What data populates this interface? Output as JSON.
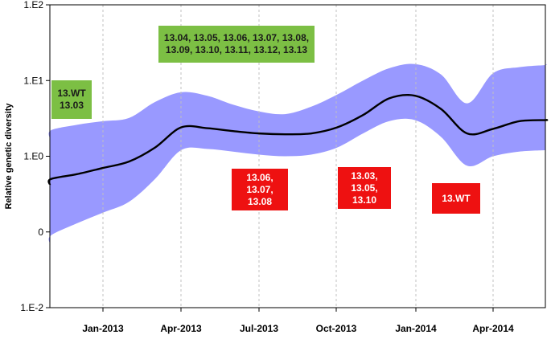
{
  "chart_data": {
    "type": "area",
    "ylabel": "Relative genetic diversity",
    "xlabel": "",
    "y_scale": "log",
    "y_ticks": [
      "1.E-2",
      "0",
      "1.E0",
      "1.E1",
      "1.E2"
    ],
    "x_ticks": [
      "Jan-2013",
      "Apr-2013",
      "Jul-2013",
      "Oct-2013",
      "Jan-2014",
      "Apr-2014"
    ],
    "grid": "vertical dashed at x ticks",
    "series": [
      {
        "kind": "median_line",
        "color": "#000000",
        "x": [
          "2012-10",
          "2012-11",
          "2012-12",
          "2013-01",
          "2013-02",
          "2013-03",
          "2013-04",
          "2013-05",
          "2013-06",
          "2013-07",
          "2013-08",
          "2013-09",
          "2013-10",
          "2013-11",
          "2013-12",
          "2014-01",
          "2014-02",
          "2014-03",
          "2014-04",
          "2014-05",
          "2014-06",
          "2014-07"
        ],
        "values": [
          0.42,
          0.5,
          0.58,
          0.7,
          0.85,
          1.3,
          2.4,
          2.35,
          2.15,
          2.0,
          1.95,
          2.0,
          2.4,
          3.5,
          5.8,
          6.3,
          4.2,
          2.0,
          2.3,
          2.9,
          3.0,
          3.0
        ]
      },
      {
        "kind": "hpd_band",
        "color": "#9999ff",
        "x": [
          "2012-10",
          "2012-11",
          "2012-12",
          "2013-01",
          "2013-02",
          "2013-03",
          "2013-04",
          "2013-05",
          "2013-06",
          "2013-07",
          "2013-08",
          "2013-09",
          "2013-10",
          "2013-11",
          "2013-12",
          "2014-01",
          "2014-02",
          "2014-03",
          "2014-04",
          "2014-05",
          "2014-06",
          "2014-07"
        ],
        "upper": [
          1.7,
          2.2,
          2.6,
          2.9,
          3.2,
          5.2,
          7.0,
          6.3,
          4.8,
          3.9,
          3.6,
          4.5,
          6.5,
          10.0,
          14.5,
          16.5,
          12.0,
          5.0,
          12.5,
          15.0,
          16.0,
          16.5
        ],
        "lower": [
          0.07,
          0.09,
          0.13,
          0.18,
          0.25,
          0.5,
          1.2,
          1.25,
          1.15,
          1.05,
          1.0,
          1.05,
          1.3,
          2.0,
          2.9,
          3.0,
          1.8,
          0.75,
          1.0,
          1.15,
          1.2,
          1.2
        ]
      }
    ],
    "annotations": [
      {
        "kind": "green",
        "text": "13.04, 13.05, 13.06, 13.07, 13.08,\n13.09, 13.10, 13.11, 13.12, 13.13"
      },
      {
        "kind": "green",
        "text": "13.WT\n13.03"
      },
      {
        "kind": "red",
        "text": "13.06,\n13.07,\n13.08"
      },
      {
        "kind": "red",
        "text": "13.03,\n13.05,\n13.10"
      },
      {
        "kind": "red",
        "text": "13.WT"
      }
    ]
  },
  "colors": {
    "band": "#9999ff",
    "line": "#000000",
    "grid": "#c0c0c0",
    "green_box": "#7cbf44",
    "red_box": "#ee1111"
  }
}
